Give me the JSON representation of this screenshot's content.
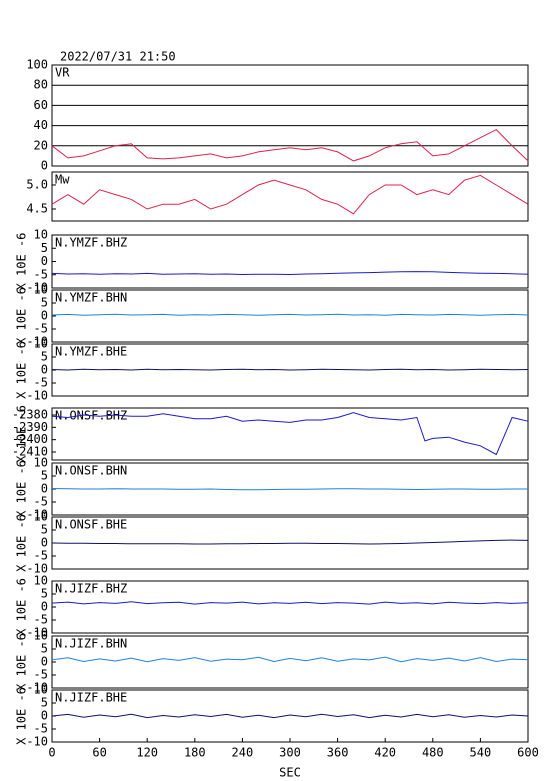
{
  "chart_data": [
    {
      "type": "line",
      "title": "2022/07/31 21:50",
      "label": "VR",
      "color": "#e0204a",
      "grid": true,
      "x": [
        0,
        20,
        40,
        60,
        80,
        100,
        120,
        140,
        160,
        180,
        200,
        220,
        240,
        260,
        280,
        300,
        320,
        340,
        360,
        380,
        400,
        420,
        440,
        460,
        480,
        500,
        520,
        540,
        560,
        580,
        600
      ],
      "values": [
        20,
        8,
        10,
        15,
        20,
        22,
        8,
        7,
        8,
        10,
        12,
        8,
        10,
        14,
        16,
        18,
        16,
        18,
        14,
        5,
        10,
        18,
        22,
        24,
        10,
        12,
        20,
        28,
        36,
        20,
        5
      ],
      "xlim": [
        0,
        600
      ],
      "ylim": [
        0,
        100
      ],
      "yticks": [
        0,
        20,
        40,
        60,
        80,
        100
      ]
    },
    {
      "type": "line",
      "label": "Mw",
      "color": "#e0204a",
      "x": [
        0,
        20,
        40,
        60,
        80,
        100,
        120,
        140,
        160,
        180,
        200,
        220,
        240,
        260,
        280,
        300,
        320,
        340,
        360,
        380,
        400,
        420,
        440,
        460,
        480,
        500,
        520,
        540,
        560,
        580,
        600
      ],
      "values": [
        4.6,
        4.8,
        4.6,
        4.9,
        4.8,
        4.7,
        4.5,
        4.6,
        4.6,
        4.7,
        4.5,
        4.6,
        4.8,
        5.0,
        5.1,
        5.0,
        4.9,
        4.7,
        4.6,
        4.4,
        4.8,
        5.0,
        5.0,
        4.8,
        4.9,
        4.8,
        5.1,
        5.2,
        5.0,
        4.8,
        4.6
      ],
      "xlim": [
        0,
        600
      ],
      "ylim": [
        4.25,
        5.27
      ],
      "yticks": [
        4.5,
        {
          "value": 5,
          "label": "5.0"
        }
      ]
    },
    {
      "type": "line",
      "label": "N.YMZF.BHZ",
      "ylabel": "X 10E -6",
      "color": "#1a1acc",
      "x": [
        0,
        20,
        40,
        60,
        80,
        100,
        120,
        140,
        160,
        180,
        200,
        220,
        240,
        260,
        280,
        300,
        320,
        340,
        360,
        380,
        400,
        420,
        440,
        460,
        480,
        500,
        520,
        540,
        560,
        580,
        600
      ],
      "values": [
        -4.5,
        -4.7,
        -4.6,
        -4.8,
        -4.6,
        -4.7,
        -4.5,
        -4.8,
        -4.7,
        -4.6,
        -4.8,
        -4.7,
        -4.9,
        -4.8,
        -4.8,
        -4.9,
        -4.7,
        -4.6,
        -4.4,
        -4.3,
        -4.2,
        -4.0,
        -3.9,
        -3.8,
        -3.9,
        -4.1,
        -4.3,
        -4.4,
        -4.5,
        -4.6,
        -4.8
      ],
      "xlim": [
        0,
        600
      ],
      "ylim": [
        -10,
        10
      ],
      "yticks": [
        -10,
        -5,
        0,
        5,
        10
      ]
    },
    {
      "type": "line",
      "label": "N.YMZF.BHN",
      "ylabel": "X 10E -6",
      "color": "#2080e0",
      "x": [
        0,
        20,
        40,
        60,
        80,
        100,
        120,
        140,
        160,
        180,
        200,
        220,
        240,
        260,
        280,
        300,
        320,
        340,
        360,
        380,
        400,
        420,
        440,
        460,
        480,
        500,
        520,
        540,
        560,
        580,
        600
      ],
      "values": [
        0.4,
        0.6,
        0.3,
        0.5,
        0.7,
        0.4,
        0.5,
        0.6,
        0.3,
        0.5,
        0.4,
        0.6,
        0.5,
        0.3,
        0.5,
        0.6,
        0.4,
        0.5,
        0.7,
        0.4,
        0.5,
        0.3,
        0.6,
        0.5,
        0.4,
        0.6,
        0.5,
        0.3,
        0.5,
        0.6,
        0.4
      ],
      "xlim": [
        0,
        600
      ],
      "ylim": [
        -10,
        10
      ],
      "yticks": [
        -10,
        -5,
        0,
        5,
        10
      ]
    },
    {
      "type": "line",
      "label": "N.YMZF.BHE",
      "ylabel": "X 10E -6",
      "color": "#10106a",
      "x": [
        0,
        20,
        40,
        60,
        80,
        100,
        120,
        140,
        160,
        180,
        200,
        220,
        240,
        260,
        280,
        300,
        320,
        340,
        360,
        380,
        400,
        420,
        440,
        460,
        480,
        500,
        520,
        540,
        560,
        580,
        600
      ],
      "values": [
        0.2,
        0.0,
        0.3,
        0.1,
        0.2,
        0.0,
        0.3,
        0.1,
        0.2,
        0.1,
        0.0,
        0.2,
        0.3,
        0.1,
        0.2,
        0.0,
        0.1,
        0.3,
        0.2,
        0.1,
        0.0,
        0.2,
        0.3,
        0.1,
        0.2,
        0.0,
        0.1,
        0.3,
        0.2,
        0.1,
        0.2
      ],
      "xlim": [
        0,
        600
      ],
      "ylim": [
        -10,
        10
      ],
      "yticks": [
        -10,
        -5,
        0,
        5,
        10
      ]
    },
    {
      "type": "line",
      "label": "N.ONSF.BHZ",
      "ylabel": "X 10E -6",
      "color": "#1a1acc",
      "x": [
        0,
        20,
        40,
        60,
        80,
        100,
        120,
        140,
        160,
        180,
        200,
        220,
        240,
        260,
        280,
        300,
        320,
        340,
        360,
        380,
        400,
        420,
        440,
        460,
        470,
        480,
        500,
        520,
        540,
        560,
        580,
        600
      ],
      "values": [
        -2381,
        -2382,
        -2380,
        -2381,
        -2380,
        -2381,
        -2381,
        -2379,
        -2381,
        -2383,
        -2383,
        -2381,
        -2385,
        -2384,
        -2385,
        -2386,
        -2384,
        -2384,
        -2382,
        -2378,
        -2382,
        -2383,
        -2384,
        -2382,
        -2401,
        -2399,
        -2398,
        -2402,
        -2405,
        -2412,
        -2382,
        -2385
      ],
      "xlim": [
        0,
        600
      ],
      "ylim": [
        -2416.5,
        -2374.3
      ],
      "yticks": [
        -2410,
        -2400,
        -2390,
        -2380
      ]
    },
    {
      "type": "line",
      "label": "N.ONSF.BHN",
      "ylabel": "X 10E -6",
      "color": "#2080e0",
      "x": [
        0,
        20,
        40,
        60,
        80,
        100,
        120,
        140,
        160,
        180,
        200,
        220,
        240,
        260,
        280,
        300,
        320,
        340,
        360,
        380,
        400,
        420,
        440,
        460,
        480,
        500,
        520,
        540,
        560,
        580,
        600
      ],
      "values": [
        0.2,
        0.1,
        0.0,
        0.0,
        0.1,
        0.0,
        0.0,
        0.0,
        -0.1,
        -0.1,
        0.0,
        -0.2,
        -0.3,
        -0.3,
        -0.2,
        -0.1,
        -0.1,
        0.0,
        0.1,
        0.1,
        0.0,
        0.0,
        -0.1,
        -0.2,
        -0.1,
        0.0,
        0.0,
        -0.1,
        -0.1,
        0.0,
        0.0
      ],
      "xlim": [
        0,
        600
      ],
      "ylim": [
        -10,
        10
      ],
      "yticks": [
        -10,
        -5,
        0,
        5,
        10
      ]
    },
    {
      "type": "line",
      "label": "N.ONSF.BHE",
      "ylabel": "X 10E -6",
      "color": "#10106a",
      "x": [
        0,
        20,
        40,
        60,
        80,
        100,
        120,
        140,
        160,
        180,
        200,
        220,
        240,
        260,
        280,
        300,
        320,
        340,
        360,
        380,
        400,
        420,
        440,
        460,
        480,
        500,
        520,
        540,
        560,
        580,
        600
      ],
      "values": [
        0.0,
        -0.1,
        -0.1,
        -0.2,
        -0.2,
        -0.3,
        -0.3,
        -0.3,
        -0.3,
        -0.4,
        -0.4,
        -0.3,
        -0.3,
        -0.2,
        -0.2,
        -0.1,
        -0.1,
        -0.2,
        -0.2,
        -0.3,
        -0.4,
        -0.3,
        -0.2,
        0.0,
        0.2,
        0.4,
        0.6,
        0.8,
        1.0,
        1.1,
        1.0
      ],
      "xlim": [
        0,
        600
      ],
      "ylim": [
        -10,
        10
      ],
      "yticks": [
        -10,
        -5,
        0,
        5,
        10
      ]
    },
    {
      "type": "line",
      "label": "N.JIZF.BHZ",
      "ylabel": "X 10E -6",
      "color": "#1a1acc",
      "x": [
        0,
        20,
        40,
        60,
        80,
        100,
        120,
        140,
        160,
        180,
        200,
        220,
        240,
        260,
        280,
        300,
        320,
        340,
        360,
        380,
        400,
        420,
        440,
        460,
        480,
        500,
        520,
        540,
        560,
        580,
        600
      ],
      "values": [
        1.5,
        1.9,
        1.2,
        1.7,
        1.4,
        2.0,
        1.3,
        1.6,
        1.8,
        1.1,
        1.7,
        1.5,
        1.9,
        1.2,
        1.6,
        1.4,
        1.8,
        1.3,
        1.7,
        1.5,
        1.1,
        1.9,
        1.4,
        1.6,
        1.2,
        1.8,
        1.5,
        1.3,
        1.7,
        1.4,
        1.6
      ],
      "xlim": [
        0,
        600
      ],
      "ylim": [
        -10,
        10
      ],
      "yticks": [
        -10,
        -5,
        0,
        5,
        10
      ]
    },
    {
      "type": "line",
      "label": "N.JIZF.BHN",
      "ylabel": "X 10E -6",
      "color": "#2080e0",
      "x": [
        0,
        20,
        40,
        60,
        80,
        100,
        120,
        140,
        160,
        180,
        200,
        220,
        240,
        260,
        280,
        300,
        320,
        340,
        360,
        380,
        400,
        420,
        440,
        460,
        480,
        500,
        520,
        540,
        560,
        580,
        600
      ],
      "values": [
        0.8,
        1.6,
        0.2,
        1.2,
        0.4,
        1.5,
        0.1,
        1.3,
        0.6,
        1.7,
        0.3,
        1.1,
        0.9,
        1.8,
        0.2,
        1.4,
        0.5,
        1.6,
        0.3,
        1.2,
        0.8,
        1.9,
        0.1,
        1.3,
        0.6,
        1.5,
        0.4,
        1.7,
        0.2,
        1.1,
        0.9
      ],
      "xlim": [
        0,
        600
      ],
      "ylim": [
        -10,
        10
      ],
      "yticks": [
        -10,
        -5,
        0,
        5,
        10
      ]
    },
    {
      "type": "line",
      "label": "N.JIZF.BHE",
      "ylabel": "X 10E -6",
      "color": "#10106a",
      "x": [
        0,
        20,
        40,
        60,
        80,
        100,
        120,
        140,
        160,
        180,
        200,
        220,
        240,
        260,
        280,
        300,
        320,
        340,
        360,
        380,
        400,
        420,
        440,
        460,
        480,
        500,
        520,
        540,
        560,
        580,
        600
      ],
      "values": [
        0.0,
        0.6,
        -0.5,
        0.4,
        -0.3,
        0.7,
        -0.6,
        0.2,
        -0.4,
        0.5,
        -0.2,
        0.6,
        -0.5,
        0.3,
        -0.6,
        0.4,
        -0.3,
        0.7,
        -0.2,
        0.5,
        -0.6,
        0.3,
        -0.4,
        0.6,
        -0.3,
        0.5,
        -0.5,
        0.2,
        -0.4,
        0.4,
        0.0
      ],
      "xlim": [
        0,
        600
      ],
      "ylim": [
        -10,
        10
      ],
      "yticks": [
        -10,
        -5,
        0,
        5,
        10
      ],
      "xticks": [
        0,
        60,
        120,
        180,
        240,
        300,
        360,
        420,
        480,
        540,
        600
      ],
      "xlabel": "SEC"
    }
  ]
}
